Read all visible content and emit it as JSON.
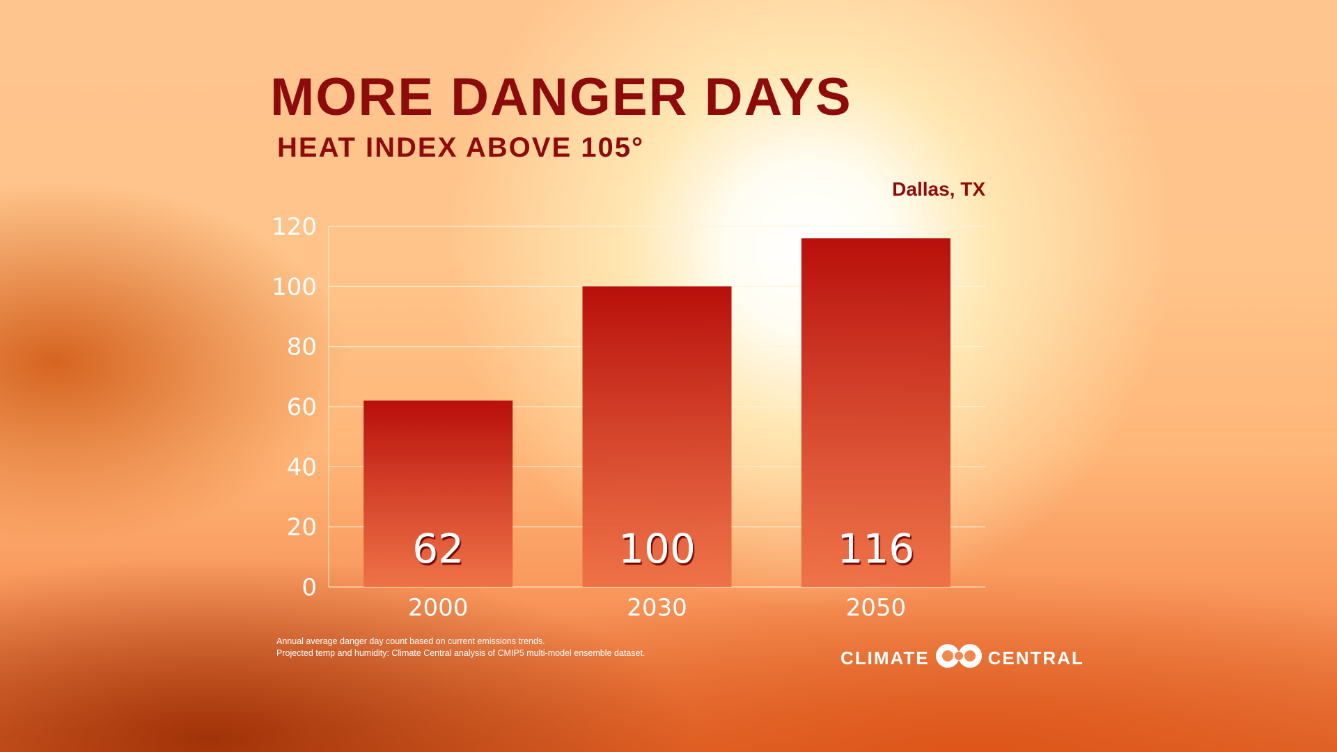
{
  "header": {
    "title": "MORE DANGER DAYS",
    "subtitle": "HEAT INDEX ABOVE 105°",
    "location": "Dallas, TX"
  },
  "chart_data": {
    "type": "bar",
    "title": "MORE DANGER DAYS",
    "subtitle": "HEAT INDEX ABOVE 105°",
    "xlabel": "",
    "ylabel": "",
    "categories": [
      "2000",
      "2030",
      "2050"
    ],
    "values": [
      62,
      100,
      116
    ],
    "data_labels": [
      "62",
      "100",
      "116"
    ],
    "ylim": [
      0,
      120
    ],
    "yticks": [
      0,
      20,
      40,
      60,
      80,
      100,
      120
    ],
    "grid": true,
    "colors": {
      "bar_top": "#b80f0a",
      "bar_bottom": "#ee6f45",
      "grid": "#fff2e0",
      "text": "#ffffff"
    }
  },
  "footnote": {
    "lines": [
      "Annual average danger day count based on current emissions trends.",
      "Projected temp and humidity: Climate Central analysis of CMIP5 multi-model ensemble dataset."
    ]
  },
  "logo": {
    "left_text": "CLIMATE",
    "right_text": "CENTRAL",
    "icon": "climate-central-rings-icon"
  },
  "colors": {
    "title": "#8e0b0b"
  }
}
